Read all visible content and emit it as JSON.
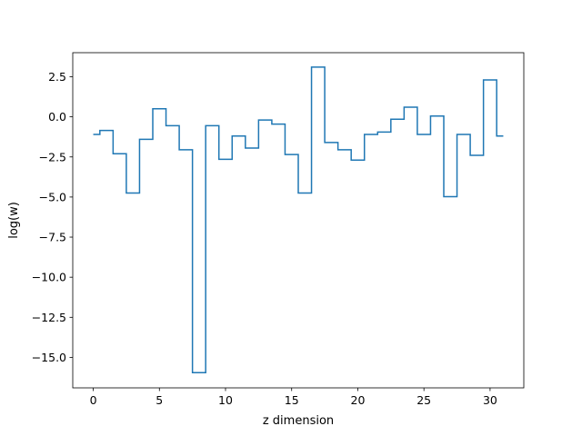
{
  "chart_data": {
    "type": "line",
    "step": "mid",
    "title": "",
    "xlabel": "z dimension",
    "ylabel": "log(w)",
    "xlim": [
      -1.55,
      32.55
    ],
    "ylim": [
      -16.9,
      4.0
    ],
    "xticks": [
      0,
      5,
      10,
      15,
      20,
      25,
      30
    ],
    "yticks": [
      2.5,
      0.0,
      -2.5,
      -5.0,
      -7.5,
      -10.0,
      -12.5,
      -15.0
    ],
    "ytick_labels": [
      "2.5",
      "0.0",
      "−2.5",
      "−5.0",
      "−7.5",
      "−10.0",
      "−12.5",
      "−15.0"
    ],
    "grid": false,
    "legend": "none",
    "line_color": "#1f77b4",
    "series": [
      {
        "x": [
          0,
          1,
          2,
          3,
          4,
          5,
          6,
          7,
          8,
          9,
          10,
          11,
          12,
          13,
          14,
          15,
          16,
          17,
          18,
          19,
          20,
          21,
          22,
          23,
          24,
          25,
          26,
          27,
          28,
          29,
          30,
          31
        ],
        "values": [
          -1.1,
          -0.85,
          -2.3,
          -4.75,
          -1.4,
          0.5,
          -0.55,
          -2.05,
          -15.95,
          -0.55,
          -2.65,
          -1.2,
          -1.95,
          -0.2,
          -0.45,
          -2.35,
          -4.75,
          3.1,
          -1.6,
          -2.05,
          -2.7,
          -1.1,
          -0.95,
          -0.15,
          0.6,
          -1.1,
          0.05,
          -4.98,
          -1.1,
          -2.4,
          2.3,
          -1.2
        ]
      }
    ]
  }
}
